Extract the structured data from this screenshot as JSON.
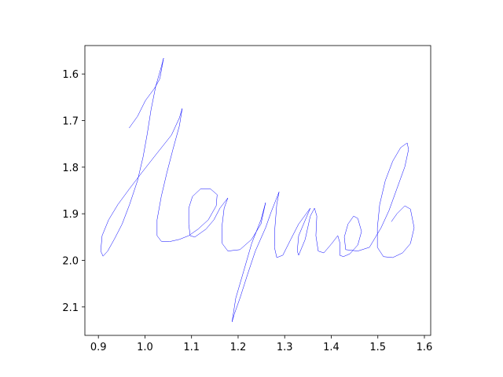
{
  "chart_data": {
    "type": "line",
    "color": "#0000ff",
    "xlim": [
      0.871,
      1.6135
    ],
    "ylim": [
      2.161,
      1.539
    ],
    "xticks": [
      0.9,
      {
        "value": 1,
        "label": "1.0"
      },
      1.1,
      1.2,
      1.3,
      1.4,
      1.5,
      1.6
    ],
    "yticks": [
      1.6,
      1.7,
      1.8,
      1.9,
      {
        "value": 2,
        "label": "2.0"
      },
      2.1
    ],
    "x": [
      0.966,
      0.984,
      1.001,
      1.021,
      1.032,
      1.04,
      1.035,
      1.023,
      1.013,
      1.005,
      0.996,
      0.984,
      0.967,
      0.951,
      0.934,
      0.92,
      0.91,
      0.905,
      0.908,
      0.922,
      0.942,
      0.967,
      0.993,
      1.026,
      1.057,
      1.074,
      1.08,
      1.074,
      1.06,
      1.047,
      1.035,
      1.026,
      1.026,
      1.035,
      1.052,
      1.074,
      1.094,
      1.114,
      1.136,
      1.153,
      1.155,
      1.141,
      1.119,
      1.102,
      1.094,
      1.094,
      1.097,
      1.107,
      1.131,
      1.148,
      1.161,
      1.178,
      1.17,
      1.165,
      1.166,
      1.178,
      1.204,
      1.229,
      1.249,
      1.259,
      1.249,
      1.229,
      1.212,
      1.195,
      1.187,
      1.192,
      1.204,
      1.22,
      1.237,
      1.259,
      1.271,
      1.288,
      1.283,
      1.279,
      1.278,
      1.283,
      1.296,
      1.313,
      1.33,
      1.355,
      1.33,
      1.327,
      1.33,
      1.344,
      1.355,
      1.364,
      1.369,
      1.367,
      1.372,
      1.384,
      1.401,
      1.414,
      1.419,
      1.418,
      1.426,
      1.44,
      1.457,
      1.465,
      1.457,
      1.448,
      1.436,
      1.428,
      1.431,
      1.457,
      1.482,
      1.507,
      1.524,
      1.541,
      1.558,
      1.566,
      1.563,
      1.549,
      1.532,
      1.516,
      1.504,
      1.499,
      1.499,
      1.512,
      1.532,
      1.553,
      1.57,
      1.578,
      1.57,
      1.558,
      1.541,
      1.529
    ],
    "values": [
      1.716,
      1.691,
      1.657,
      1.63,
      1.61,
      1.566,
      1.585,
      1.627,
      1.677,
      1.728,
      1.778,
      1.829,
      1.88,
      1.922,
      1.955,
      1.98,
      1.991,
      1.98,
      1.947,
      1.913,
      1.88,
      1.846,
      1.812,
      1.77,
      1.731,
      1.694,
      1.674,
      1.711,
      1.762,
      1.812,
      1.863,
      1.913,
      1.947,
      1.959,
      1.96,
      1.955,
      1.947,
      1.933,
      1.913,
      1.883,
      1.859,
      1.847,
      1.847,
      1.863,
      1.888,
      1.922,
      1.947,
      1.95,
      1.933,
      1.913,
      1.888,
      1.866,
      1.888,
      1.93,
      1.964,
      1.98,
      1.977,
      1.955,
      1.922,
      1.876,
      1.913,
      1.964,
      2.023,
      2.081,
      2.132,
      2.115,
      2.081,
      2.031,
      1.98,
      1.93,
      1.896,
      1.853,
      1.88,
      1.93,
      1.972,
      1.994,
      1.989,
      1.955,
      1.922,
      1.888,
      1.947,
      1.98,
      1.989,
      1.955,
      1.905,
      1.888,
      1.905,
      1.947,
      1.98,
      1.984,
      1.964,
      1.947,
      1.964,
      1.989,
      1.992,
      1.986,
      1.967,
      1.938,
      1.91,
      1.905,
      1.922,
      1.95,
      1.977,
      1.98,
      1.972,
      1.93,
      1.893,
      1.846,
      1.799,
      1.762,
      1.748,
      1.758,
      1.787,
      1.829,
      1.88,
      1.93,
      1.972,
      1.992,
      1.994,
      1.984,
      1.964,
      1.93,
      1.89,
      1.883,
      1.9,
      1.917
    ]
  }
}
